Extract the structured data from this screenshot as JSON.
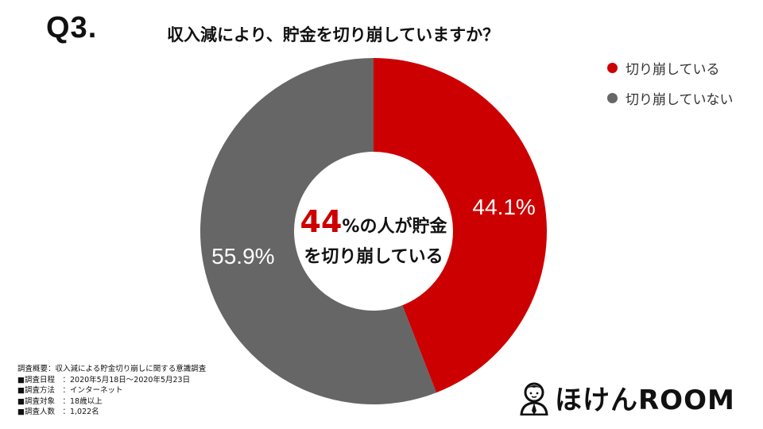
{
  "header": {
    "question_number": "Q3.",
    "question": "収入減により、貯金を切り崩していますか？"
  },
  "chart_data": {
    "type": "pie",
    "style": "donut",
    "categories": [
      "切り崩している",
      "切り崩していない"
    ],
    "values": [
      44.1,
      55.9
    ],
    "labels": [
      "44.1%",
      "55.9%"
    ],
    "colors": [
      "#cc0000",
      "#666666"
    ],
    "legend_position": "top-right",
    "center_text": {
      "highlight": "44",
      "line1_rest": "%の人が貯金",
      "line2": "を切り崩している"
    }
  },
  "survey": {
    "title": "調査概要：収入減による貯金切り崩しに関する意識調査",
    "rows": [
      "■調査日程　：2020年5月18日～2020年5月23日",
      "■調査方法　：インターネット",
      "■調査対象　：18歳以上",
      "■調査人数　：1,022名"
    ]
  },
  "brand": {
    "logo_text": "ほけんROOM",
    "logo_icon": "person-avatar-icon"
  }
}
